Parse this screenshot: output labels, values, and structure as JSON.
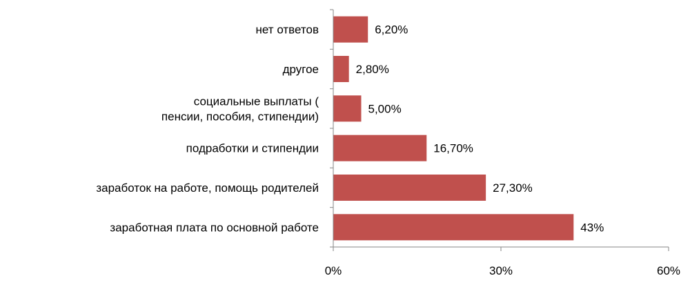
{
  "chart_data": {
    "type": "bar",
    "orientation": "horizontal",
    "categories": [
      [
        "нет ответов"
      ],
      [
        "другое"
      ],
      [
        "социальные выплаты (",
        "пенсии, пособия, стипендии)"
      ],
      [
        "подработки и стипендии"
      ],
      [
        "заработок на работе, помощь родителей"
      ],
      [
        "заработная плата по основной работе"
      ]
    ],
    "values": [
      6.2,
      2.8,
      5.0,
      16.7,
      27.3,
      43.0
    ],
    "value_labels": [
      "6,20%",
      "2,80%",
      "5,00%",
      "16,70%",
      "27,30%",
      "43%"
    ],
    "xlim": [
      0,
      60
    ],
    "xticks": [
      0,
      30,
      60
    ],
    "xtick_labels": [
      "0%",
      "30%",
      "60%"
    ],
    "bar_color": "#c0504d",
    "grid": false,
    "legend": "none"
  }
}
